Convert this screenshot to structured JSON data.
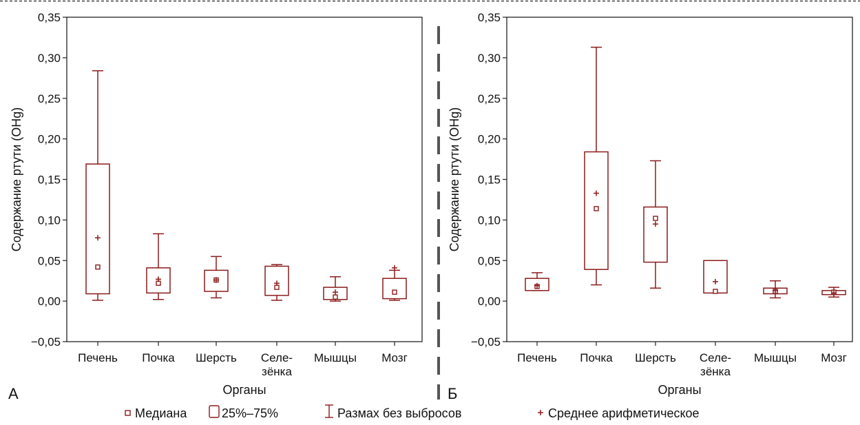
{
  "colors": {
    "mark": "#8b1a1a",
    "axis": "#222222",
    "divider": "#555555"
  },
  "legend": [
    {
      "icon": "median-square-icon",
      "label": "Медиана"
    },
    {
      "icon": "box-rect-icon",
      "label": "25%–75%"
    },
    {
      "icon": "whisker-icon",
      "label": "Размах  без  выбросов"
    },
    {
      "icon": "plus-icon",
      "label": "Среднее арифметическое"
    }
  ],
  "chart_data": [
    {
      "type": "boxplot",
      "panel_label": "А",
      "xlabel": "Органы",
      "ylabel": "Содержание  ртути  (ОНg)",
      "ylim": [
        -0.05,
        0.35
      ],
      "yticks": [
        "−0,05",
        "0,00",
        "0,05",
        "0,10",
        "0,15",
        "0,20",
        "0,25",
        "0,30",
        "0,35"
      ],
      "categories": [
        [
          "Печень"
        ],
        [
          "Почка"
        ],
        [
          "Шерсть"
        ],
        [
          "Селе-",
          "зёнка"
        ],
        [
          "Мышцы"
        ],
        [
          "Мозг"
        ]
      ],
      "boxes": [
        {
          "whisker_low": 0.001,
          "q1": 0.009,
          "median": 0.042,
          "q3": 0.169,
          "whisker_high": 0.284,
          "mean": 0.078
        },
        {
          "whisker_low": 0.002,
          "q1": 0.01,
          "median": 0.022,
          "q3": 0.041,
          "whisker_high": 0.083,
          "mean": 0.027
        },
        {
          "whisker_low": 0.004,
          "q1": 0.012,
          "median": 0.026,
          "q3": 0.038,
          "whisker_high": 0.055,
          "mean": 0.026
        },
        {
          "whisker_low": 0.001,
          "q1": 0.007,
          "median": 0.017,
          "q3": 0.043,
          "whisker_high": 0.045,
          "mean": 0.022
        },
        {
          "whisker_low": 0.0,
          "q1": 0.002,
          "median": 0.005,
          "q3": 0.017,
          "whisker_high": 0.03,
          "mean": 0.011
        },
        {
          "whisker_low": 0.001,
          "q1": 0.003,
          "median": 0.011,
          "q3": 0.028,
          "whisker_high": 0.038,
          "mean": 0.041
        }
      ]
    },
    {
      "type": "boxplot",
      "panel_label": "Б",
      "xlabel": "Органы",
      "ylabel": "Содержание  ртути  (ОНg)",
      "ylim": [
        -0.05,
        0.35
      ],
      "yticks": [
        "−0,05",
        "0,00",
        "0,05",
        "0,10",
        "0,15",
        "0,20",
        "0,25",
        "0,30",
        "0,35"
      ],
      "categories": [
        [
          "Печень"
        ],
        [
          "Почка"
        ],
        [
          "Шерсть"
        ],
        [
          "Селе-",
          "зёнка"
        ],
        [
          "Мышцы"
        ],
        [
          "Мозг"
        ]
      ],
      "boxes": [
        {
          "whisker_low": 0.013,
          "q1": 0.013,
          "median": 0.018,
          "q3": 0.028,
          "whisker_high": 0.035,
          "mean": 0.019
        },
        {
          "whisker_low": 0.02,
          "q1": 0.039,
          "median": 0.114,
          "q3": 0.184,
          "whisker_high": 0.313,
          "mean": 0.133
        },
        {
          "whisker_low": 0.016,
          "q1": 0.048,
          "median": 0.102,
          "q3": 0.116,
          "whisker_high": 0.173,
          "mean": 0.095
        },
        {
          "whisker_low": 0.01,
          "q1": 0.01,
          "median": 0.012,
          "q3": 0.05,
          "whisker_high": 0.05,
          "mean": 0.024
        },
        {
          "whisker_low": 0.004,
          "q1": 0.009,
          "median": 0.012,
          "q3": 0.016,
          "whisker_high": 0.025,
          "mean": 0.013
        },
        {
          "whisker_low": 0.005,
          "q1": 0.008,
          "median": 0.011,
          "q3": 0.013,
          "whisker_high": 0.017,
          "mean": 0.01
        }
      ]
    }
  ]
}
